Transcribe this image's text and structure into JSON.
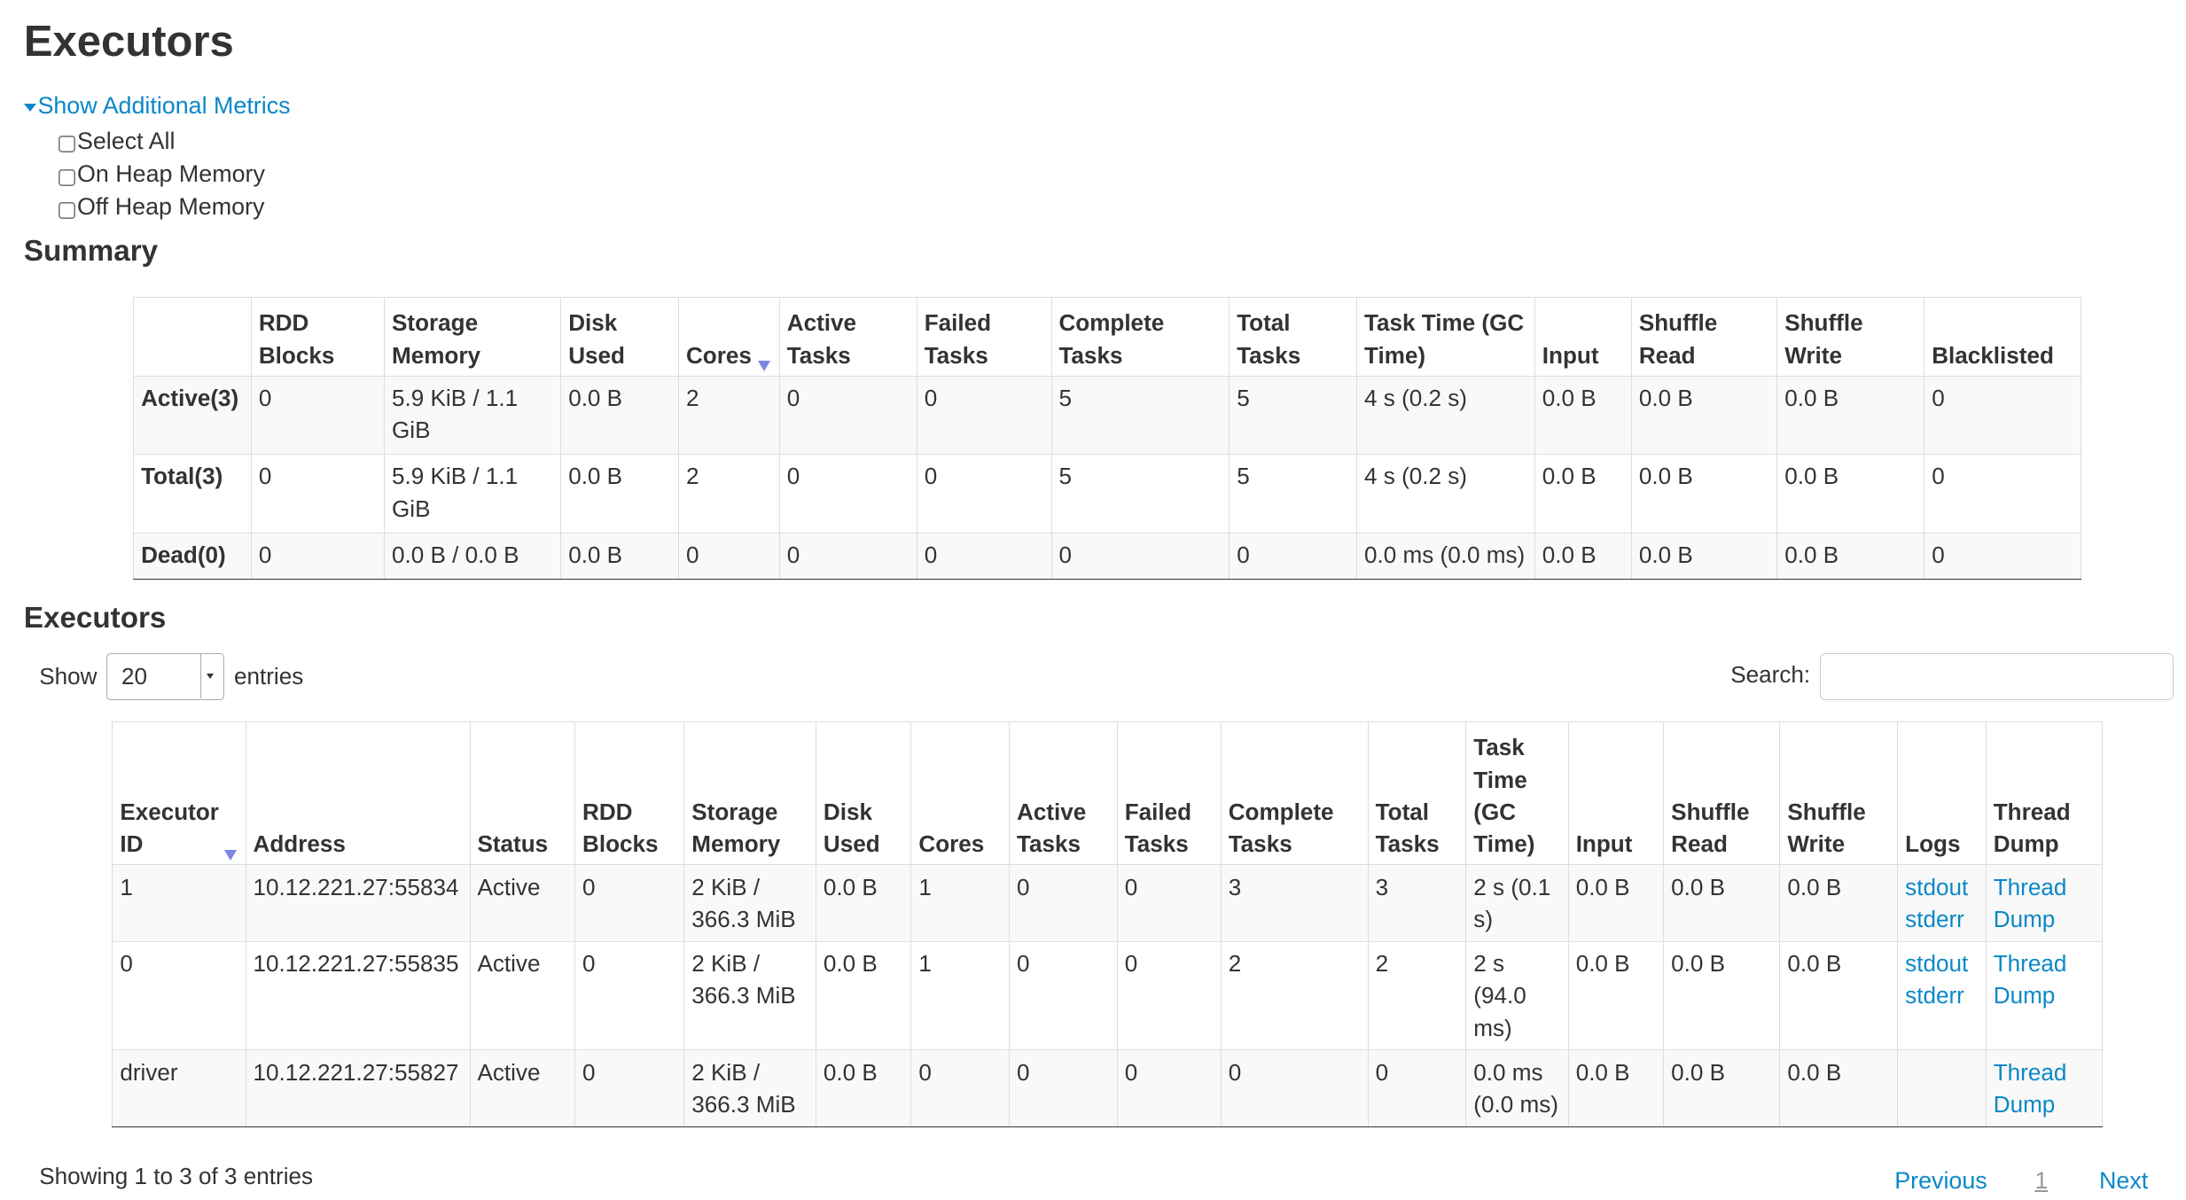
{
  "page": {
    "title": "Executors",
    "additional_metrics_label": "Show Additional Metrics",
    "metrics": [
      {
        "label": "Select All",
        "checked": false
      },
      {
        "label": "On Heap Memory",
        "checked": false
      },
      {
        "label": "Off Heap Memory",
        "checked": false
      }
    ],
    "summary_heading": "Summary",
    "executors_heading": "Executors"
  },
  "summary": {
    "headers": [
      "",
      "RDD Blocks",
      "Storage Memory",
      "Disk Used",
      "Cores",
      "Active Tasks",
      "Failed Tasks",
      "Complete Tasks",
      "Total Tasks",
      "Task Time (GC Time)",
      "Input",
      "Shuffle Read",
      "Shuffle Write",
      "Blacklisted"
    ],
    "sorted_column": "Cores",
    "rows": [
      [
        "Active(3)",
        "0",
        "5.9 KiB / 1.1 GiB",
        "0.0 B",
        "2",
        "0",
        "0",
        "5",
        "5",
        "4 s (0.2 s)",
        "0.0 B",
        "0.0 B",
        "0.0 B",
        "0"
      ],
      [
        "Total(3)",
        "0",
        "5.9 KiB / 1.1 GiB",
        "0.0 B",
        "2",
        "0",
        "0",
        "5",
        "5",
        "4 s (0.2 s)",
        "0.0 B",
        "0.0 B",
        "0.0 B",
        "0"
      ],
      [
        "Dead(0)",
        "0",
        "0.0 B / 0.0 B",
        "0.0 B",
        "0",
        "0",
        "0",
        "0",
        "0",
        "0.0 ms (0.0 ms)",
        "0.0 B",
        "0.0 B",
        "0.0 B",
        "0"
      ]
    ]
  },
  "controls": {
    "show_label": "Show",
    "page_size": "20",
    "entries_label": "entries",
    "search_label": "Search:",
    "search_value": ""
  },
  "executors": {
    "headers": [
      "Executor ID",
      "Address",
      "Status",
      "RDD Blocks",
      "Storage Memory",
      "Disk Used",
      "Cores",
      "Active Tasks",
      "Failed Tasks",
      "Complete Tasks",
      "Total Tasks",
      "Task Time (GC Time)",
      "Input",
      "Shuffle Read",
      "Shuffle Write",
      "Logs",
      "Thread Dump"
    ],
    "sorted_column": "Executor ID",
    "rows": [
      [
        "1",
        "10.12.221.27:55834",
        "Active",
        "0",
        "2 KiB / 366.3 MiB",
        "0.0 B",
        "1",
        "0",
        "0",
        "3",
        "3",
        "2 s (0.1 s)",
        "0.0 B",
        "0.0 B",
        "0.0 B"
      ],
      [
        "0",
        "10.12.221.27:55835",
        "Active",
        "0",
        "2 KiB / 366.3 MiB",
        "0.0 B",
        "1",
        "0",
        "0",
        "2",
        "2",
        "2 s (94.0 ms)",
        "0.0 B",
        "0.0 B",
        "0.0 B"
      ],
      [
        "driver",
        "10.12.221.27:55827",
        "Active",
        "0",
        "2 KiB / 366.3 MiB",
        "0.0 B",
        "0",
        "0",
        "0",
        "0",
        "0",
        "0.0 ms (0.0 ms)",
        "0.0 B",
        "0.0 B",
        "0.0 B"
      ]
    ],
    "logs": [
      [
        "stdout",
        "stderr"
      ],
      [
        "stdout",
        "stderr"
      ],
      []
    ],
    "thread_dump_label": "Thread Dump"
  },
  "footer": {
    "info": "Showing 1 to 3 of 3 entries",
    "previous": "Previous",
    "current_page": "1",
    "next": "Next"
  },
  "colors": {
    "link": "#0a88c8",
    "sort_arrow": "#7b86e6",
    "border": "#dddddd"
  }
}
